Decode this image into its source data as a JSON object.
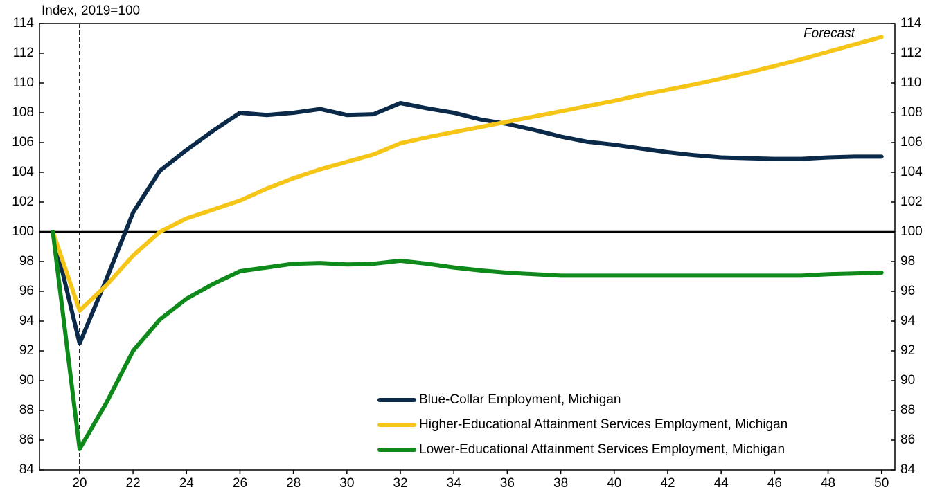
{
  "chart_data": {
    "type": "line",
    "y_label": "Index, 2019=100",
    "annotation": "Forecast",
    "reference_line": 100,
    "vline_x": 20,
    "x": [
      19,
      20,
      21,
      22,
      23,
      24,
      25,
      26,
      27,
      28,
      29,
      30,
      31,
      32,
      33,
      34,
      35,
      36,
      37,
      38,
      39,
      40,
      41,
      42,
      43,
      44,
      45,
      46,
      47,
      48,
      49,
      50
    ],
    "xlim": [
      18.5,
      50.5
    ],
    "xticks": [
      20,
      22,
      24,
      26,
      28,
      30,
      32,
      34,
      36,
      38,
      40,
      42,
      44,
      46,
      48,
      50
    ],
    "ylim": [
      84,
      114
    ],
    "yticks": [
      84,
      86,
      88,
      90,
      92,
      94,
      96,
      98,
      100,
      102,
      104,
      106,
      108,
      110,
      112,
      114
    ],
    "y2lim": [
      84,
      114
    ],
    "y2ticks": [
      84,
      86,
      88,
      90,
      92,
      94,
      96,
      98,
      100,
      102,
      104,
      106,
      108,
      110,
      112,
      114
    ],
    "legend": "lower right",
    "series": [
      {
        "name": "Blue-Collar Employment, Michigan",
        "color": "#0b2a4a",
        "values": [
          100,
          92.5,
          96.8,
          101.3,
          104.1,
          105.5,
          106.8,
          108.0,
          107.85,
          108.0,
          108.25,
          107.85,
          107.9,
          108.65,
          108.3,
          108.0,
          107.55,
          107.25,
          106.85,
          106.4,
          106.05,
          105.85,
          105.6,
          105.35,
          105.15,
          105.0,
          104.95,
          104.9,
          104.9,
          105.0,
          105.05,
          105.05
        ]
      },
      {
        "name": "Higher-Educational Attainment Services Employment, Michigan",
        "color": "#f5c518",
        "values": [
          100,
          94.7,
          96.4,
          98.4,
          100.0,
          100.9,
          101.5,
          102.1,
          102.9,
          103.6,
          104.2,
          104.7,
          105.2,
          105.95,
          106.35,
          106.7,
          107.05,
          107.4,
          107.75,
          108.1,
          108.45,
          108.8,
          109.2,
          109.55,
          109.9,
          110.3,
          110.7,
          111.15,
          111.6,
          112.1,
          112.6,
          113.1
        ]
      },
      {
        "name": "Lower-Educational Attainment Services Employment, Michigan",
        "color": "#0e8a1b",
        "values": [
          100,
          85.4,
          88.5,
          92.0,
          94.1,
          95.5,
          96.5,
          97.35,
          97.6,
          97.85,
          97.9,
          97.8,
          97.85,
          98.05,
          97.85,
          97.6,
          97.4,
          97.25,
          97.15,
          97.05,
          97.05,
          97.05,
          97.05,
          97.05,
          97.05,
          97.05,
          97.05,
          97.05,
          97.05,
          97.15,
          97.2,
          97.25
        ]
      }
    ]
  }
}
